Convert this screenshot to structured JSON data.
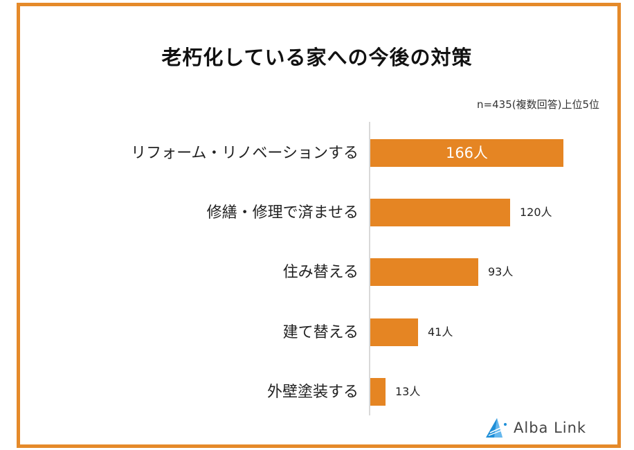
{
  "title": "老朽化している家への今後の対策",
  "note": "n=435(複数回答)上位5位",
  "brand": {
    "name": "Alba Link",
    "accent": "#1f8fd8"
  },
  "colors": {
    "frame": "#e58a2a",
    "bar": "#e58523"
  },
  "bars": [
    {
      "label": "リフォーム・リノベーションする",
      "value": 166,
      "value_label": "166人"
    },
    {
      "label": "修繕・修理で済ませる",
      "value": 120,
      "value_label": "120人"
    },
    {
      "label": "住み替える",
      "value": 93,
      "value_label": "93人"
    },
    {
      "label": "建て替える",
      "value": 41,
      "value_label": "41人"
    },
    {
      "label": "外壁塗装する",
      "value": 13,
      "value_label": "13人"
    }
  ],
  "chart_data": {
    "type": "bar",
    "orientation": "horizontal",
    "title": "老朽化している家への今後の対策",
    "subtitle": "n=435(複数回答)上位5位",
    "categories": [
      "リフォーム・リノベーションする",
      "修繕・修理で済ませる",
      "住み替える",
      "建て替える",
      "外壁塗装する"
    ],
    "values": [
      166,
      120,
      93,
      41,
      13
    ],
    "value_labels": [
      "166人",
      "120人",
      "93人",
      "41人",
      "13人"
    ],
    "unit": "人",
    "xlabel": "",
    "ylabel": "",
    "xlim": [
      0,
      166
    ],
    "grid": false,
    "legend": null
  }
}
